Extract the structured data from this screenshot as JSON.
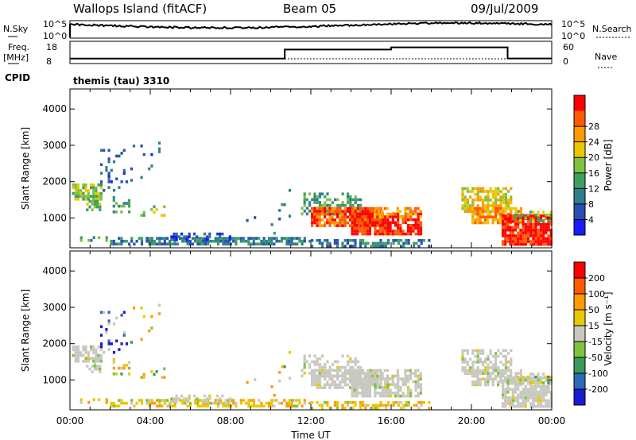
{
  "header": {
    "site": "Wallops Island (fitACF)",
    "beam": "Beam 05",
    "date": "09/Jul/2009"
  },
  "top_panels": {
    "nsky_label": "N.Sky",
    "nsky_ticks": [
      "10^5",
      "10^0"
    ],
    "nsearch_label": "N.Search",
    "nsearch_ticks": [
      "10^5",
      "10^0"
    ],
    "freq_label": "Freq.",
    "freq_unit": "[MHz]",
    "freq_ticks": [
      "18",
      "8"
    ],
    "nave_label": "Nave",
    "nave_ticks": [
      "60",
      "0"
    ],
    "cpid_label": "CPID",
    "cpid_value": "themis (tau) 3310"
  },
  "colors": {
    "power": [
      "#1a1aff",
      "#2a4fb0",
      "#2e7f8a",
      "#3e9f60",
      "#7ec23e",
      "#e8c800",
      "#ff9a00",
      "#ff5a00",
      "#ff0000"
    ],
    "velocity": [
      "#1a1ad0",
      "#2a6ab8",
      "#3a9a5a",
      "#7ec23e",
      "#c8c8c0",
      "#e8c800",
      "#ff9a00",
      "#ff5a00",
      "#ff0000"
    ]
  },
  "chart_data": [
    {
      "type": "heatmap",
      "quantity": "Power",
      "xlabel": "Time UT",
      "ylabel": "Slant Range [km]",
      "colorbar_label": "Power [dB]",
      "colorbar_ticks": [
        "4",
        "8",
        "12",
        "16",
        "20",
        "24",
        "28"
      ],
      "x_ticks": [
        "00:00",
        "04:00",
        "08:00",
        "12:00",
        "16:00",
        "20:00",
        "00:00"
      ],
      "y_ticks": [
        "1000",
        "2000",
        "3000",
        "4000"
      ],
      "xlim_hours": [
        0,
        24
      ],
      "ylim_km": [
        180,
        4550
      ]
    },
    {
      "type": "heatmap",
      "quantity": "Velocity",
      "xlabel": "Time UT",
      "ylabel": "Slant Range [km]",
      "colorbar_label": "Velocity [m s⁻¹]",
      "colorbar_ticks": [
        "-200",
        "-100",
        "-50",
        "-15",
        "15",
        "50",
        "100",
        "200"
      ],
      "x_ticks": [
        "00:00",
        "04:00",
        "08:00",
        "12:00",
        "16:00",
        "20:00",
        "00:00"
      ],
      "y_ticks": [
        "1000",
        "2000",
        "3000",
        "4000"
      ],
      "xlim_hours": [
        0,
        24
      ],
      "ylim_km": [
        180,
        4550
      ]
    }
  ],
  "frequency_series": {
    "type": "line",
    "x_hours": [
      0,
      10.7,
      10.7,
      16.0,
      16.0,
      21.8,
      21.8,
      24
    ],
    "freq_mhz": [
      10.2,
      10.2,
      14.3,
      14.3,
      15.3,
      15.3,
      10.3,
      10.3
    ]
  }
}
